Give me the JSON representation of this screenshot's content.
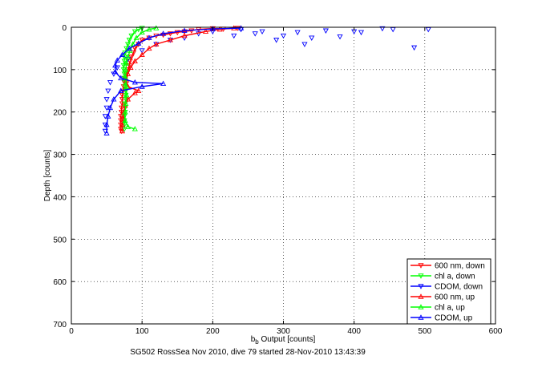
{
  "chart_data": {
    "type": "scatter",
    "title": "",
    "xlabel_main": "b",
    "xlabel_sub": "b",
    "xlabel_rest": " Output [counts]",
    "ylabel": "Depth [counts]",
    "xlim": [
      0,
      600
    ],
    "ylim": [
      0,
      700
    ],
    "y_inverted": true,
    "grid": true,
    "xticks": [
      0,
      100,
      200,
      300,
      400,
      500,
      600
    ],
    "yticks": [
      0,
      100,
      200,
      300,
      400,
      500,
      600,
      700
    ],
    "legend_position": "bottom-right",
    "caption": "SG502 RossSea Nov 2010, dive 79 started 28-Nov-2010 13:43:39",
    "series": [
      {
        "name": "600 nm, down",
        "color": "#ff0000",
        "marker": "triangle-down",
        "line": true,
        "points": [
          [
            235,
            2
          ],
          [
            215,
            4
          ],
          [
            200,
            3
          ],
          [
            180,
            5
          ],
          [
            170,
            8
          ],
          [
            160,
            10
          ],
          [
            150,
            12
          ],
          [
            140,
            15
          ],
          [
            130,
            18
          ],
          [
            120,
            20
          ],
          [
            110,
            25
          ],
          [
            100,
            30
          ],
          [
            95,
            40
          ],
          [
            90,
            50
          ],
          [
            88,
            60
          ],
          [
            85,
            70
          ],
          [
            83,
            80
          ],
          [
            82,
            90
          ],
          [
            80,
            100
          ],
          [
            78,
            110
          ],
          [
            76,
            120
          ],
          [
            75,
            130
          ],
          [
            74,
            140
          ],
          [
            73,
            150
          ],
          [
            72,
            160
          ],
          [
            72,
            170
          ],
          [
            72,
            180
          ],
          [
            71,
            190
          ],
          [
            71,
            200
          ],
          [
            70,
            210
          ],
          [
            70,
            220
          ],
          [
            70,
            230
          ],
          [
            70,
            240
          ],
          [
            71,
            245
          ]
        ]
      },
      {
        "name": "chl a, down",
        "color": "#00ff00",
        "marker": "triangle-down",
        "line": true,
        "points": [
          [
            100,
            2
          ],
          [
            95,
            5
          ],
          [
            90,
            10
          ],
          [
            85,
            20
          ],
          [
            82,
            30
          ],
          [
            80,
            40
          ],
          [
            78,
            50
          ],
          [
            76,
            60
          ],
          [
            75,
            70
          ],
          [
            75,
            80
          ],
          [
            74,
            90
          ],
          [
            74,
            100
          ],
          [
            75,
            110
          ],
          [
            75,
            120
          ],
          [
            76,
            130
          ],
          [
            76,
            140
          ],
          [
            77,
            150
          ],
          [
            77,
            160
          ],
          [
            77,
            170
          ],
          [
            76,
            180
          ],
          [
            76,
            190
          ],
          [
            76,
            200
          ],
          [
            75,
            210
          ],
          [
            75,
            220
          ],
          [
            75,
            230
          ],
          [
            75,
            240
          ]
        ]
      },
      {
        "name": "CDOM, down",
        "color": "#0000ff",
        "marker": "triangle-down",
        "line": false,
        "points": [
          [
            505,
            5
          ],
          [
            485,
            48
          ],
          [
            455,
            5
          ],
          [
            440,
            3
          ],
          [
            410,
            12
          ],
          [
            400,
            10
          ],
          [
            380,
            22
          ],
          [
            360,
            8
          ],
          [
            340,
            25
          ],
          [
            330,
            40
          ],
          [
            320,
            12
          ],
          [
            300,
            20
          ],
          [
            290,
            30
          ],
          [
            270,
            10
          ],
          [
            260,
            15
          ],
          [
            240,
            5
          ],
          [
            230,
            20
          ],
          [
            200,
            10
          ],
          [
            180,
            15
          ],
          [
            160,
            25
          ],
          [
            140,
            30
          ],
          [
            120,
            40
          ],
          [
            100,
            55
          ],
          [
            80,
            75
          ],
          [
            65,
            95
          ],
          [
            60,
            110
          ],
          [
            55,
            130
          ],
          [
            52,
            150
          ],
          [
            50,
            170
          ],
          [
            50,
            190
          ],
          [
            48,
            210
          ],
          [
            48,
            230
          ],
          [
            48,
            245
          ]
        ]
      },
      {
        "name": "600 nm, up",
        "color": "#ff0000",
        "marker": "triangle-up",
        "line": true,
        "points": [
          [
            72,
            245
          ],
          [
            72,
            230
          ],
          [
            73,
            215
          ],
          [
            74,
            200
          ],
          [
            76,
            185
          ],
          [
            80,
            170
          ],
          [
            90,
            155
          ],
          [
            95,
            150
          ],
          [
            80,
            140
          ],
          [
            78,
            125
          ],
          [
            80,
            110
          ],
          [
            84,
            95
          ],
          [
            90,
            80
          ],
          [
            100,
            65
          ],
          [
            110,
            50
          ],
          [
            120,
            40
          ],
          [
            140,
            30
          ],
          [
            160,
            20
          ],
          [
            190,
            10
          ],
          [
            210,
            5
          ],
          [
            230,
            2
          ]
        ]
      },
      {
        "name": "chl a, up",
        "color": "#00ff00",
        "marker": "triangle-up",
        "line": true,
        "points": [
          [
            90,
            240
          ],
          [
            80,
            235
          ],
          [
            76,
            220
          ],
          [
            76,
            200
          ],
          [
            77,
            180
          ],
          [
            78,
            160
          ],
          [
            78,
            140
          ],
          [
            77,
            120
          ],
          [
            77,
            100
          ],
          [
            78,
            85
          ],
          [
            80,
            70
          ],
          [
            83,
            55
          ],
          [
            87,
            40
          ],
          [
            92,
            25
          ],
          [
            100,
            12
          ],
          [
            110,
            5
          ],
          [
            120,
            2
          ]
        ]
      },
      {
        "name": "CDOM, up",
        "color": "#0000ff",
        "marker": "triangle-up",
        "line": true,
        "points": [
          [
            50,
            250
          ],
          [
            50,
            230
          ],
          [
            52,
            210
          ],
          [
            55,
            190
          ],
          [
            60,
            170
          ],
          [
            70,
            150
          ],
          [
            100,
            140
          ],
          [
            130,
            133
          ],
          [
            90,
            130
          ],
          [
            70,
            120
          ],
          [
            62,
            105
          ],
          [
            62,
            90
          ],
          [
            65,
            78
          ],
          [
            72,
            65
          ],
          [
            82,
            50
          ],
          [
            95,
            38
          ],
          [
            110,
            25
          ],
          [
            130,
            15
          ],
          [
            160,
            8
          ],
          [
            200,
            4
          ],
          [
            240,
            2
          ]
        ]
      }
    ]
  }
}
